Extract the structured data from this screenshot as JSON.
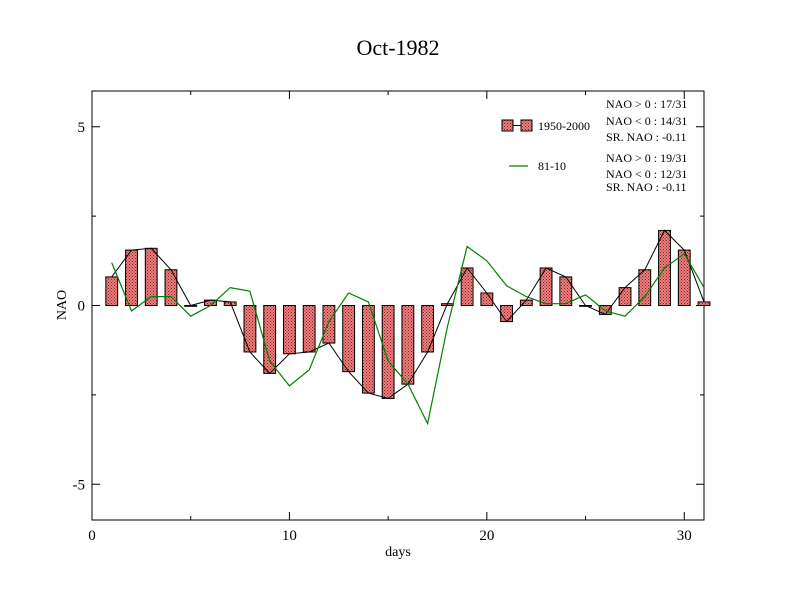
{
  "chart_data": {
    "type": "bar",
    "title": "Oct-1982",
    "xlabel": "days",
    "ylabel": "NAO",
    "xlim": [
      0,
      31
    ],
    "ylim": [
      -6,
      6
    ],
    "xticks": [
      0,
      10,
      20,
      30
    ],
    "yticks": [
      -5,
      0,
      5
    ],
    "x": [
      1,
      2,
      3,
      4,
      5,
      6,
      7,
      8,
      9,
      10,
      11,
      12,
      13,
      14,
      15,
      16,
      17,
      18,
      19,
      20,
      21,
      22,
      23,
      24,
      25,
      26,
      27,
      28,
      29,
      30,
      31
    ],
    "series": [
      {
        "name": "1950-2000",
        "kind": "bar+line",
        "color": "#f08080",
        "values": [
          0.8,
          1.55,
          1.6,
          1.0,
          0.0,
          0.15,
          0.1,
          -1.3,
          -1.9,
          -1.35,
          -1.3,
          -1.05,
          -1.85,
          -2.45,
          -2.6,
          -2.2,
          -1.3,
          0.05,
          1.05,
          0.35,
          -0.45,
          0.15,
          1.05,
          0.8,
          0.0,
          -0.25,
          0.5,
          1.0,
          2.1,
          1.55,
          0.1
        ]
      },
      {
        "name": "81-10",
        "kind": "line",
        "color": "#008000",
        "values": [
          1.2,
          -0.15,
          0.25,
          0.25,
          -0.3,
          0.0,
          0.5,
          0.4,
          -1.55,
          -2.25,
          -1.8,
          -0.45,
          0.35,
          0.1,
          -1.55,
          -2.2,
          -3.3,
          -0.6,
          1.65,
          1.25,
          0.55,
          0.25,
          0.05,
          0.05,
          0.3,
          -0.15,
          -0.3,
          0.25,
          1.05,
          1.45,
          0.5
        ]
      }
    ],
    "stats": [
      [
        "NAO > 0 : 17/31",
        "NAO < 0 : 14/31",
        "SR. NAO : -0.11"
      ],
      [
        "NAO > 0 : 19/31",
        "NAO < 0 : 12/31",
        "SR. NAO : -0.11"
      ]
    ],
    "legend_position": "top-right",
    "grid": false
  }
}
